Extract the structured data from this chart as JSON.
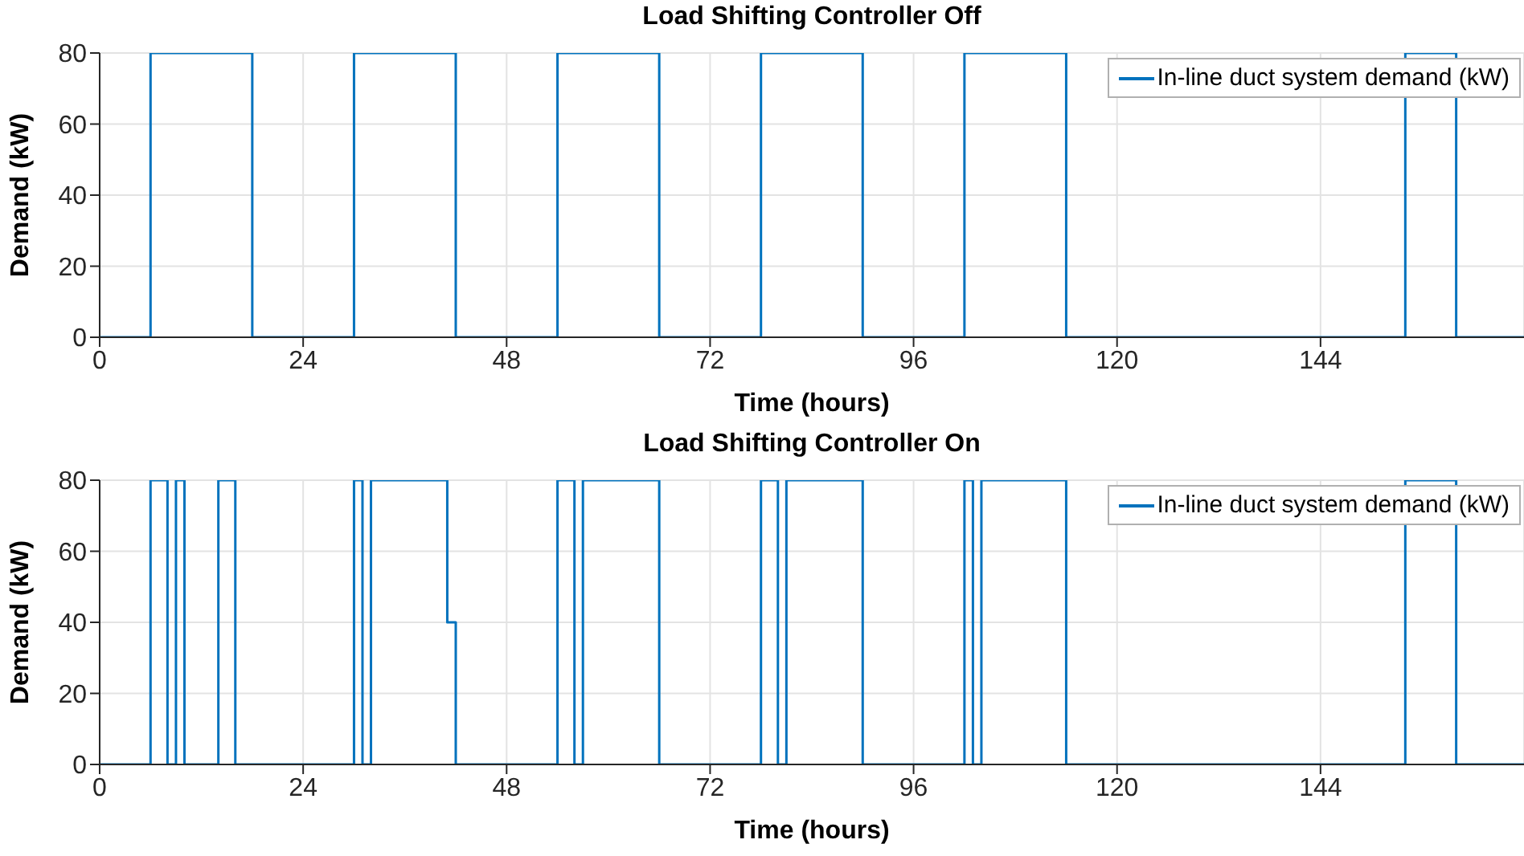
{
  "chart_data": [
    {
      "type": "step",
      "title": "Load Shifting Controller Off",
      "xlabel": "Time (hours)",
      "ylabel": "Demand (kW)",
      "xlim": [
        0,
        168
      ],
      "xticks": [
        0,
        24,
        48,
        72,
        96,
        120,
        144
      ],
      "ylim": [
        0,
        80
      ],
      "yticks": [
        0,
        20,
        40,
        60,
        80
      ],
      "grid": true,
      "legend": "top right",
      "marker": "none",
      "line_style": "solid",
      "series": [
        {
          "name": "In-line duct system demand (kW)",
          "color": "#0072bd",
          "x": [
            0,
            6,
            18,
            30,
            42,
            54,
            66,
            78,
            90,
            102,
            114,
            154,
            160,
            168
          ],
          "values": [
            0,
            80,
            0,
            80,
            0,
            80,
            0,
            80,
            0,
            80,
            0,
            80,
            0,
            0
          ]
        }
      ]
    },
    {
      "type": "step",
      "title": "Load Shifting Controller On",
      "xlabel": "Time (hours)",
      "ylabel": "Demand (kW)",
      "xlim": [
        0,
        168
      ],
      "xticks": [
        0,
        24,
        48,
        72,
        96,
        120,
        144
      ],
      "ylim": [
        0,
        80
      ],
      "yticks": [
        0,
        20,
        40,
        60,
        80
      ],
      "grid": true,
      "legend": "top right",
      "marker": "none",
      "line_style": "solid",
      "series": [
        {
          "name": "In-line duct system demand (kW)",
          "color": "#0072bd",
          "x": [
            0,
            6,
            8,
            9,
            10,
            14,
            16,
            30,
            31,
            32,
            41,
            42,
            54,
            56,
            57,
            66,
            78,
            80,
            81,
            90,
            102,
            103,
            104,
            114,
            154,
            160,
            168
          ],
          "values": [
            0,
            80,
            0,
            80,
            0,
            80,
            0,
            80,
            0,
            80,
            40,
            0,
            80,
            0,
            80,
            0,
            80,
            0,
            80,
            0,
            80,
            0,
            80,
            0,
            80,
            0,
            0
          ]
        }
      ]
    }
  ]
}
